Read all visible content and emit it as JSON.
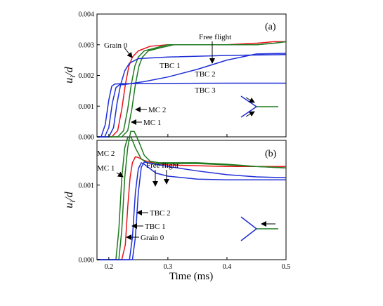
{
  "colors": {
    "grain0": "#e8141c",
    "mc": "#1f7a1f",
    "tbc": "#1f2fd6",
    "axis": "#000000"
  },
  "chart_data": [
    {
      "type": "line",
      "panel_label": "(a)",
      "ylabel": "u_i/d",
      "ylabel_main": "u",
      "ylabel_sub": "i",
      "ylabel_rest": "/d",
      "xlim": [
        0.18,
        0.5
      ],
      "ylim": [
        0,
        0.004
      ],
      "yticks": [
        "0.000",
        "0.001",
        "0.002",
        "0.003",
        "0.004"
      ],
      "ytick_values": [
        0,
        0.001,
        0.002,
        0.003,
        0.004
      ],
      "series": [
        {
          "name": "Grain 0",
          "color": "grain0",
          "x": [
            0.18,
            0.205,
            0.215,
            0.222,
            0.228,
            0.234,
            0.24,
            0.25,
            0.27,
            0.3,
            0.35,
            0.4,
            0.45,
            0.48,
            0.5
          ],
          "y": [
            0,
            0,
            0.0002,
            0.0009,
            0.0017,
            0.0023,
            0.0026,
            0.0028,
            0.00295,
            0.003,
            0.003,
            0.003,
            0.00305,
            0.0031,
            0.0031
          ]
        },
        {
          "name": "MC 1",
          "color": "mc",
          "x": [
            0.18,
            0.215,
            0.225,
            0.232,
            0.238,
            0.244,
            0.25,
            0.26,
            0.28,
            0.3,
            0.35,
            0.4,
            0.45,
            0.48,
            0.5
          ],
          "y": [
            0,
            0,
            0.0002,
            0.0009,
            0.0017,
            0.0023,
            0.0026,
            0.0028,
            0.0029,
            0.003,
            0.003,
            0.003,
            0.003,
            0.00305,
            0.0031
          ]
        },
        {
          "name": "MC 2",
          "color": "mc",
          "x": [
            0.18,
            0.222,
            0.232,
            0.239,
            0.245,
            0.251,
            0.257,
            0.267,
            0.287,
            0.31,
            0.35,
            0.4,
            0.45,
            0.48,
            0.5
          ],
          "y": [
            0,
            0,
            0.0002,
            0.0009,
            0.0017,
            0.0023,
            0.0026,
            0.0028,
            0.0029,
            0.003,
            0.003,
            0.003,
            0.003,
            0.00305,
            0.0031
          ]
        },
        {
          "name": "TBC 1",
          "color": "tbc",
          "x": [
            0.18,
            0.2,
            0.208,
            0.214,
            0.22,
            0.227,
            0.235,
            0.25,
            0.3,
            0.4,
            0.5
          ],
          "y": [
            0,
            0,
            0.0003,
            0.0011,
            0.0017,
            0.00215,
            0.0024,
            0.00255,
            0.0026,
            0.00265,
            0.00268
          ]
        },
        {
          "name": "TBC 2",
          "color": "tbc",
          "x": [
            0.18,
            0.193,
            0.2,
            0.206,
            0.212,
            0.218,
            0.225,
            0.26,
            0.3,
            0.35,
            0.4,
            0.45,
            0.5
          ],
          "y": [
            0,
            0,
            0.0003,
            0.0011,
            0.0016,
            0.0017,
            0.0017,
            0.0018,
            0.00195,
            0.0022,
            0.0025,
            0.0027,
            0.00272
          ]
        },
        {
          "name": "TBC 3",
          "color": "tbc",
          "x": [
            0.18,
            0.187,
            0.194,
            0.2,
            0.205,
            0.21,
            0.22,
            0.3,
            0.4,
            0.5
          ],
          "y": [
            0,
            0,
            0.0004,
            0.0012,
            0.00165,
            0.00172,
            0.00173,
            0.00174,
            0.00175,
            0.00175
          ]
        }
      ],
      "annotations": [
        "Grain 0",
        "Free flight",
        "TBC 1",
        "TBC 2",
        "TBC 3",
        "MC 2",
        "MC 1"
      ]
    },
    {
      "type": "line",
      "panel_label": "(b)",
      "ylabel": "u_i/d",
      "ylabel_main": "u",
      "ylabel_sub": "i",
      "ylabel_rest": "/d",
      "xlim": [
        0.18,
        0.5
      ],
      "ylim": [
        0,
        0.0016
      ],
      "yticks": [
        "0.000",
        "0.001"
      ],
      "ytick_values": [
        0,
        0.001
      ],
      "xlabel": "Time (ms)",
      "xticks": [
        "0.2",
        "0.3",
        "0.4",
        "0.5"
      ],
      "xtick_values": [
        0.2,
        0.3,
        0.4,
        0.5
      ],
      "series": [
        {
          "name": "Grain 0",
          "color": "grain0",
          "x": [
            0.18,
            0.222,
            0.228,
            0.232,
            0.236,
            0.24,
            0.245,
            0.25,
            0.26,
            0.28,
            0.3,
            0.35,
            0.4,
            0.45,
            0.5
          ],
          "y": [
            0,
            0,
            0.0002,
            0.0007,
            0.0011,
            0.0013,
            0.00138,
            0.00137,
            0.00133,
            0.00129,
            0.00127,
            0.00126,
            0.00125,
            0.00125,
            0.00125
          ]
        },
        {
          "name": "MC 1",
          "color": "mc",
          "x": [
            0.18,
            0.212,
            0.217,
            0.222,
            0.227,
            0.232,
            0.238,
            0.245,
            0.255,
            0.265,
            0.28,
            0.3,
            0.35,
            0.4,
            0.45,
            0.5
          ],
          "y": [
            0,
            0,
            0.0004,
            0.0011,
            0.0015,
            0.00164,
            0.00164,
            0.0015,
            0.00135,
            0.0013,
            0.00129,
            0.00129,
            0.00129,
            0.00127,
            0.00125,
            0.00123
          ]
        },
        {
          "name": "MC 2",
          "color": "mc",
          "x": [
            0.18,
            0.217,
            0.222,
            0.227,
            0.232,
            0.237,
            0.243,
            0.25,
            0.26,
            0.27,
            0.285,
            0.3,
            0.35,
            0.4,
            0.45,
            0.5
          ],
          "y": [
            0,
            0,
            0.0004,
            0.0011,
            0.0015,
            0.00172,
            0.00172,
            0.0016,
            0.0014,
            0.00132,
            0.0013,
            0.0013,
            0.0013,
            0.00128,
            0.00125,
            0.00123
          ]
        },
        {
          "name": "TBC 1",
          "color": "tbc",
          "x": [
            0.18,
            0.235,
            0.24,
            0.245,
            0.25,
            0.255,
            0.26,
            0.27,
            0.28,
            0.3,
            0.35,
            0.4,
            0.45,
            0.5
          ],
          "y": [
            0,
            0,
            0.0003,
            0.0009,
            0.00122,
            0.0013,
            0.00128,
            0.00122,
            0.00116,
            0.00112,
            0.00108,
            0.00107,
            0.00107,
            0.00107
          ]
        },
        {
          "name": "TBC 2",
          "color": "tbc",
          "x": [
            0.18,
            0.24,
            0.245,
            0.25,
            0.255,
            0.26,
            0.265,
            0.28,
            0.3,
            0.35,
            0.4,
            0.45,
            0.5
          ],
          "y": [
            0,
            0,
            0.0003,
            0.0009,
            0.00124,
            0.00131,
            0.0013,
            0.00128,
            0.00125,
            0.00119,
            0.00114,
            0.00111,
            0.0011
          ]
        }
      ],
      "annotations": [
        "MC 2",
        "MC 1",
        "Free flight",
        "TBC 2",
        "TBC 1",
        "Grain 0"
      ]
    }
  ]
}
